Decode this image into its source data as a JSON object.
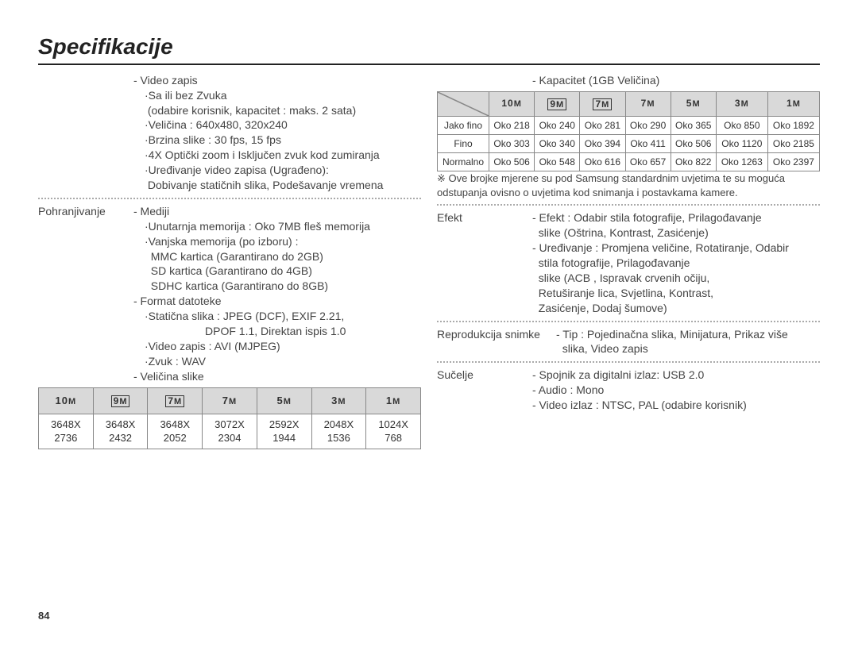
{
  "page_number": "84",
  "title": "Specifikacije",
  "left": {
    "video_header": "- Video zapis",
    "video_lines": [
      "·Sa ili bez Zvuka",
      " (odabire korisnik, kapacitet : maks. 2 sata)",
      "·Veličina : 640x480, 320x240",
      "·Brzina slike : 30 fps, 15 fps",
      "·4X Optički zoom i Isključen zvuk kod zumiranja",
      "·Uređivanje video zapisa (Ugrađeno):",
      " Dobivanje statičnih slika, Podešavanje vremena"
    ],
    "storage_label": "Pohranjivanje",
    "media_header": "- Mediji",
    "media_lines": [
      "·Unutarnja memorija : Oko 7MB fleš memorija",
      "·Vanjska memorija (po izboru) :",
      "  MMC kartica (Garantirano do 2GB)",
      "  SD kartica (Garantirano do 4GB)",
      "  SDHC kartica (Garantirano do 8GB)"
    ],
    "format_header": "- Format datoteke",
    "format_lines": [
      "·Statična slika : JPEG (DCF), EXIF 2.21,"
    ],
    "format_line_indent": "DPOF 1.1, Direktan ispis 1.0",
    "format_lines2": [
      "·Video zapis : AVI (MJPEG)",
      "·Zvuk : WAV"
    ],
    "size_header": "- Veličina slike",
    "size_headers": [
      "10M",
      "9M",
      "7M",
      "7M",
      "5M",
      "3M",
      "1M"
    ],
    "size_special": [
      false,
      true,
      true,
      false,
      false,
      false,
      false
    ],
    "size_row": [
      "3648X 2736",
      "3648X 2432",
      "3648X 2052",
      "3072X 2304",
      "2592X 1944",
      "2048X 1536",
      "1024X 768"
    ]
  },
  "right": {
    "capacity_header": "- Kapacitet (1GB Veličina)",
    "cap_cols": [
      "10M",
      "9M",
      "7M",
      "7M",
      "5M",
      "3M",
      "1M"
    ],
    "cap_special": [
      false,
      true,
      true,
      false,
      false,
      false,
      false
    ],
    "cap_rows": [
      {
        "label": "Jako fino",
        "vals": [
          "Oko 218",
          "Oko 240",
          "Oko 281",
          "Oko 290",
          "Oko 365",
          "Oko 850",
          "Oko 1892"
        ]
      },
      {
        "label": "Fino",
        "vals": [
          "Oko 303",
          "Oko 340",
          "Oko 394",
          "Oko 411",
          "Oko 506",
          "Oko 1120",
          "Oko 2185"
        ]
      },
      {
        "label": "Normalno",
        "vals": [
          "Oko 506",
          "Oko 548",
          "Oko 616",
          "Oko 657",
          "Oko 822",
          "Oko 1263",
          "Oko 2397"
        ]
      }
    ],
    "note": "※ Ove brojke mjerene su pod Samsung standardnim uvjetima te su moguća odstupanja ovisno o uvjetima kod snimanja i postavkama kamere.",
    "effect_label": "Efekt",
    "effect_lines": [
      "- Efekt : Odabir stila fotografije, Prilagođavanje",
      "  slike (Oštrina, Kontrast, Zasićenje)",
      "- Uređivanje : Promjena veličine, Rotatiranje, Odabir",
      "  stila fotografije, Prilagođavanje",
      "  slike (ACB , Ispravak crvenih očiju,",
      "  Retuširanje lica, Svjetlina, Kontrast,",
      "  Zasićenje, Dodaj šumove)"
    ],
    "repro_label": "Reprodukcija snimke",
    "repro_lines": [
      "- Tip : Pojedinačna slika, Minijatura, Prikaz više",
      "  slika, Video zapis"
    ],
    "interface_label": "Sučelje",
    "interface_lines": [
      "- Spojnik za digitalni izlaz: USB 2.0",
      "- Audio : Mono",
      "- Video izlaz : NTSC, PAL (odabire korisnik)"
    ]
  }
}
